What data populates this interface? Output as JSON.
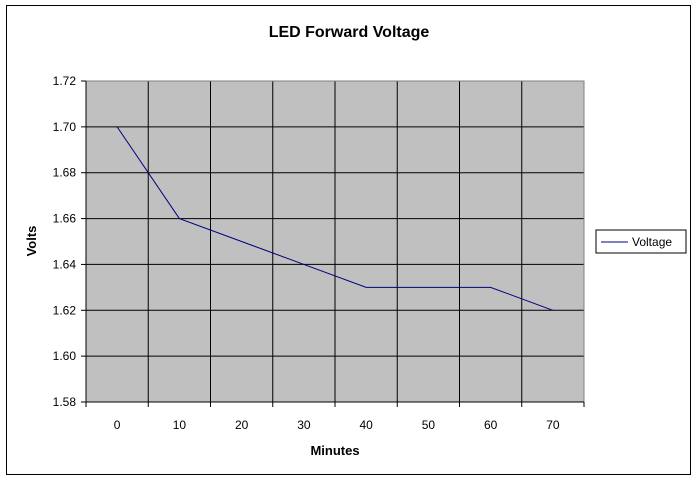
{
  "chart_data": {
    "type": "line",
    "title": "LED Forward Voltage",
    "xlabel": "Minutes",
    "ylabel": "Volts",
    "categories": [
      "0",
      "10",
      "20",
      "30",
      "40",
      "50",
      "60",
      "70"
    ],
    "x": [
      0,
      10,
      20,
      30,
      40,
      50,
      60,
      70
    ],
    "ylim": [
      1.58,
      1.72
    ],
    "yticks": [
      "1.58",
      "1.60",
      "1.62",
      "1.64",
      "1.66",
      "1.68",
      "1.70",
      "1.72"
    ],
    "series": [
      {
        "name": "Voltage",
        "color": "#000080",
        "values": [
          1.7,
          1.66,
          1.65,
          1.64,
          1.63,
          1.63,
          1.63,
          1.62
        ]
      }
    ],
    "grid": true,
    "plot_background": "#c0c0c0",
    "legend_position": "right"
  }
}
